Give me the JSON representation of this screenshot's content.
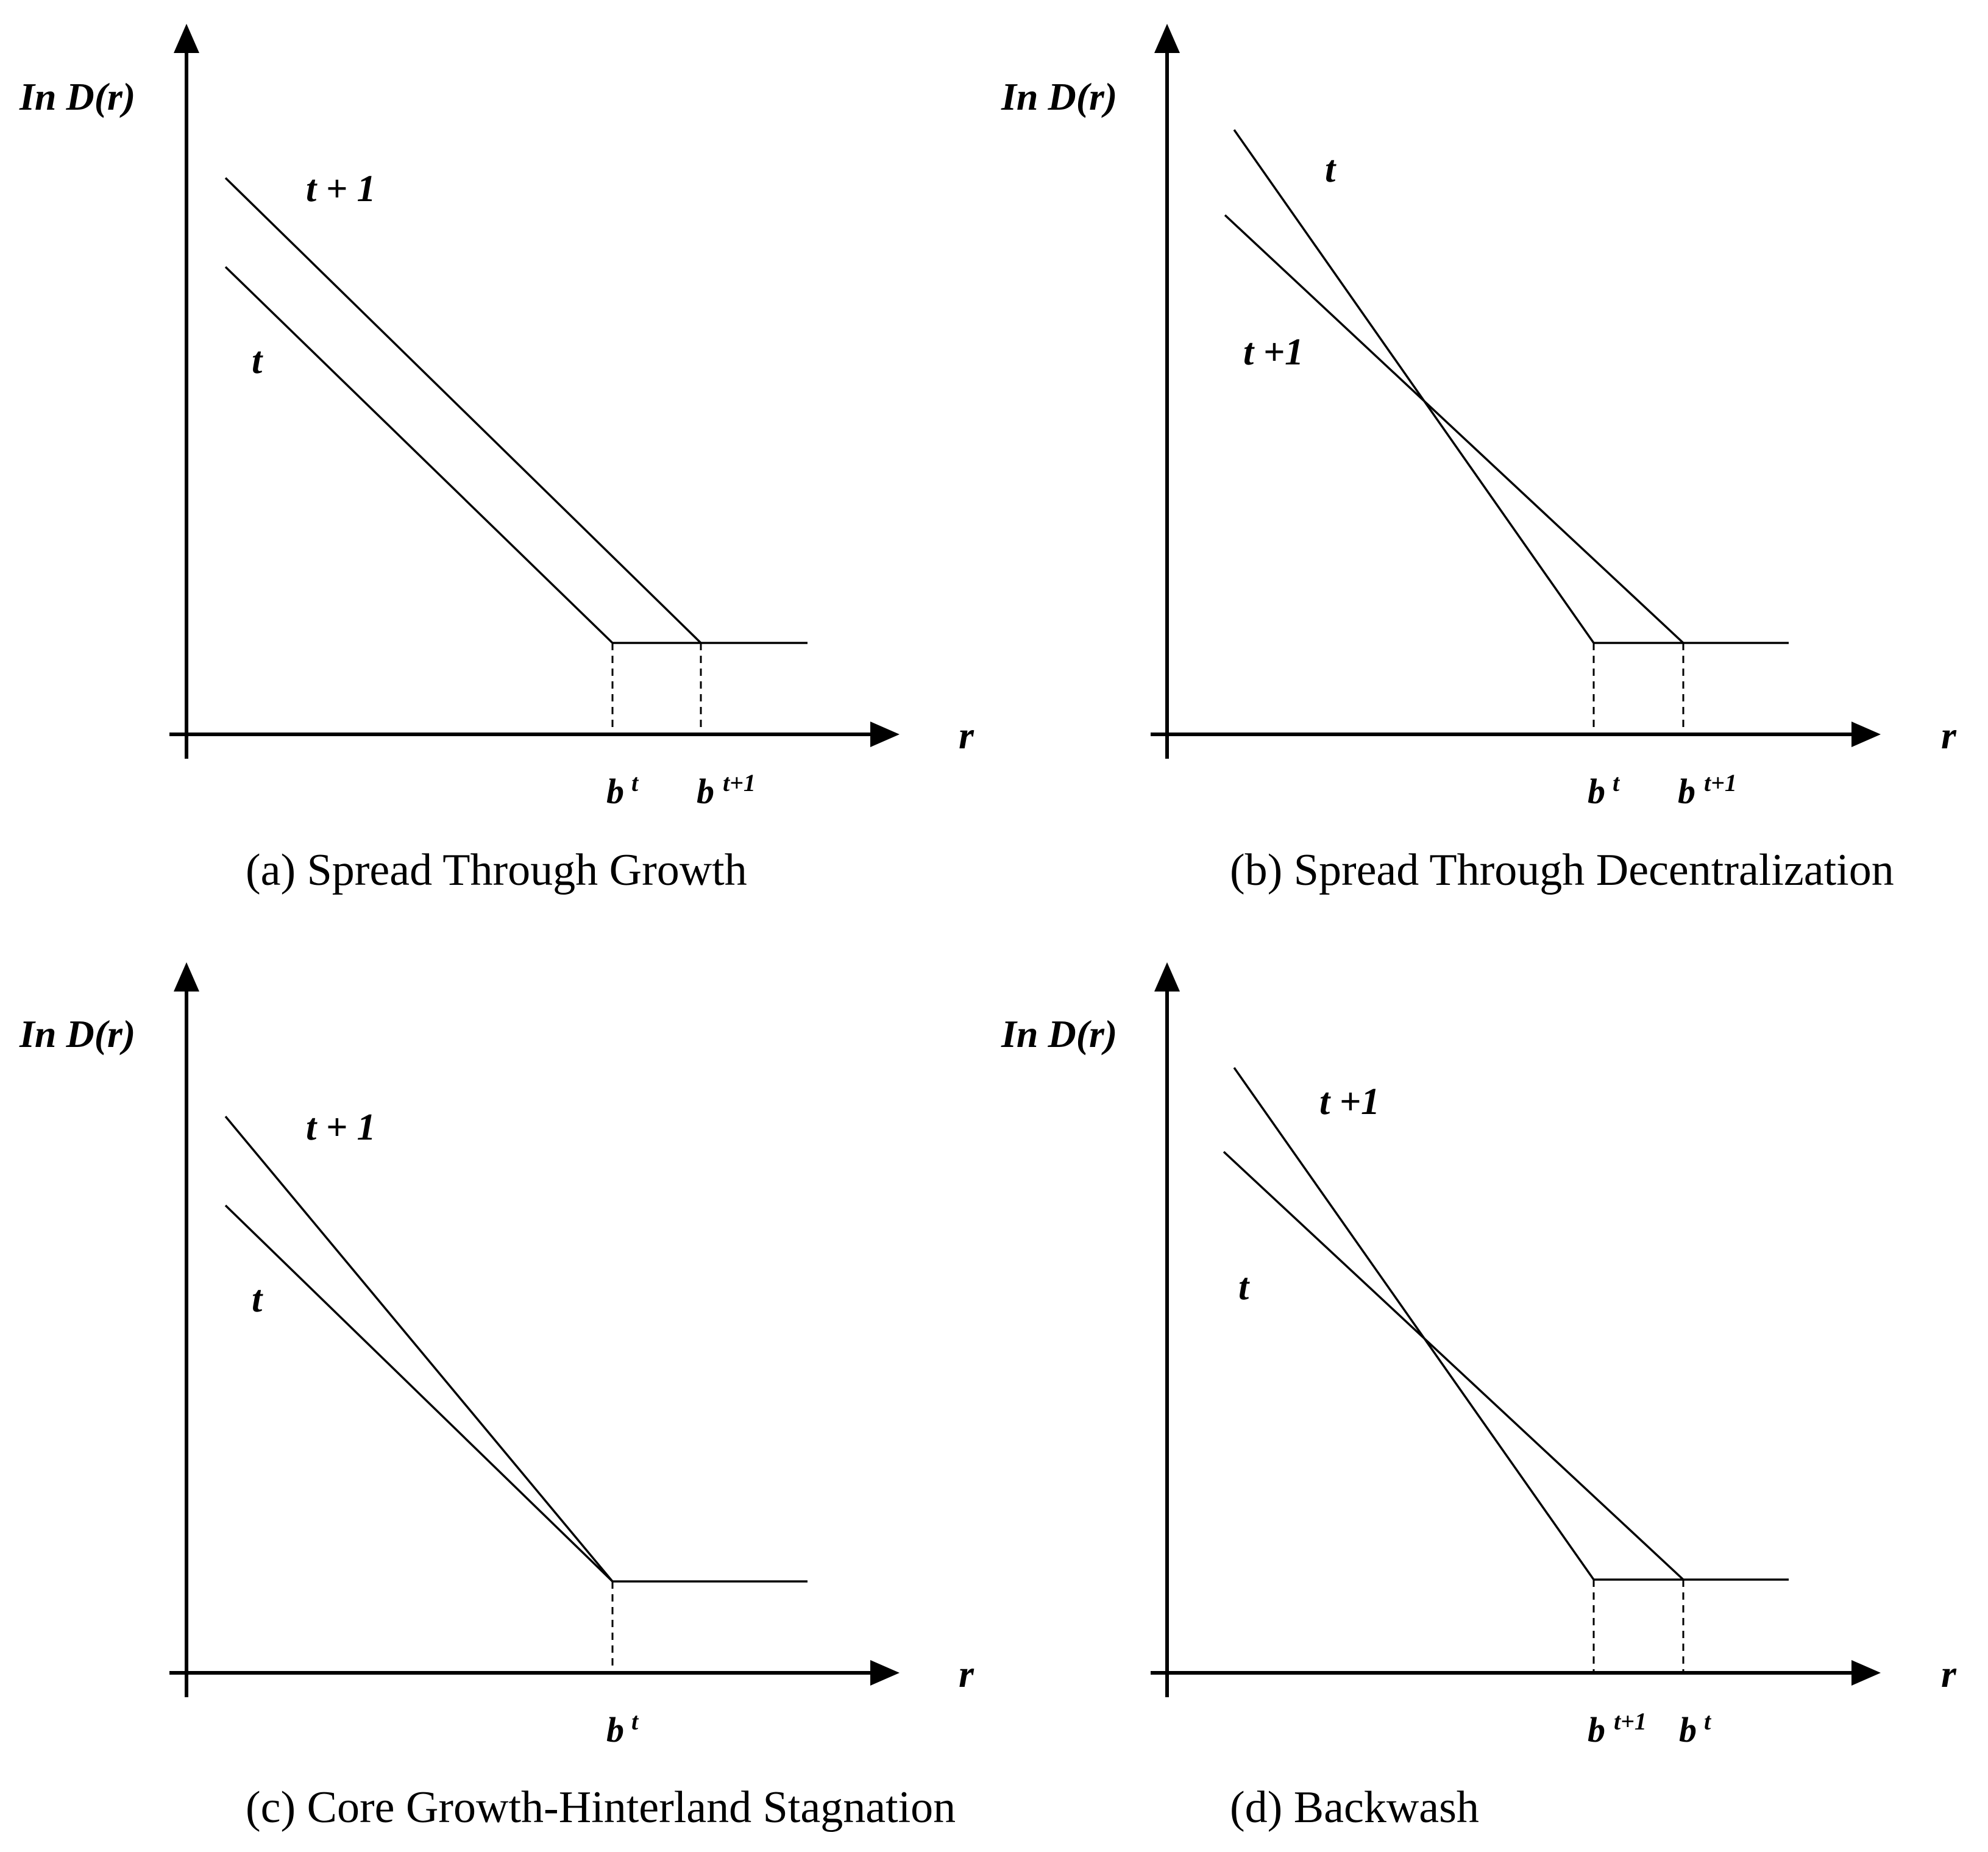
{
  "panels": [
    {
      "id": "a",
      "y_axis_label": "In D(r)",
      "x_axis_label": "r",
      "curve_labels": [
        "t + 1",
        "t"
      ],
      "tick_labels": [
        {
          "base": "b",
          "sup": "t"
        },
        {
          "base": "b",
          "sup": "t+1"
        }
      ],
      "caption": "(a) Spread Through Growth"
    },
    {
      "id": "b",
      "y_axis_label": "In D(r)",
      "x_axis_label": "r",
      "curve_labels": [
        "t",
        "t +1"
      ],
      "tick_labels": [
        {
          "base": "b",
          "sup": "t"
        },
        {
          "base": "b",
          "sup": "t+1"
        }
      ],
      "caption": "(b) Spread Through Decentralization"
    },
    {
      "id": "c",
      "y_axis_label": "In D(r)",
      "x_axis_label": "r",
      "curve_labels": [
        "t + 1",
        "t"
      ],
      "tick_labels": [
        {
          "base": "b",
          "sup": "t"
        }
      ],
      "caption": "(c) Core Growth-Hinterland Stagnation"
    },
    {
      "id": "d",
      "y_axis_label": "In D(r)",
      "x_axis_label": "r",
      "curve_labels": [
        "t +1",
        "t"
      ],
      "tick_labels": [
        {
          "base": "b",
          "sup": "t+1"
        },
        {
          "base": "b",
          "sup": "t"
        }
      ],
      "caption": "(d) Backwash"
    }
  ]
}
